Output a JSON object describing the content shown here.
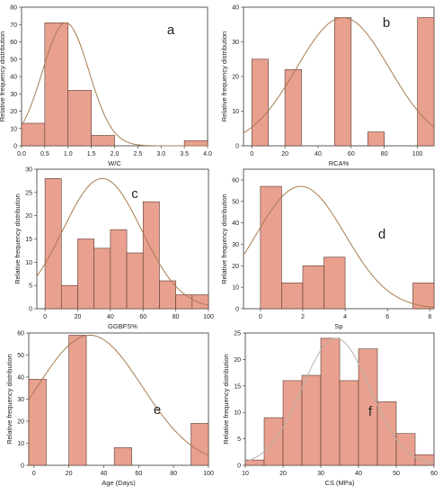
{
  "chart_data": [
    {
      "type": "bar",
      "panel": "a",
      "xlabel": "W/C",
      "ylabel": "Relative frequency distribution",
      "xlim": [
        0,
        4.0
      ],
      "ylim": [
        0,
        80
      ],
      "xticks": [
        "0.0",
        "0.5",
        "1.0",
        "1.5",
        "2.0",
        "2.5",
        "3.0",
        "3.5",
        "4.0"
      ],
      "yticks": [
        "0",
        "10",
        "20",
        "30",
        "40",
        "50",
        "60",
        "70",
        "80"
      ],
      "bins": [
        {
          "x0": 0.0,
          "x1": 0.5,
          "value": 13
        },
        {
          "x0": 0.5,
          "x1": 1.0,
          "value": 71
        },
        {
          "x0": 1.0,
          "x1": 1.5,
          "value": 32
        },
        {
          "x0": 1.5,
          "x1": 2.0,
          "value": 6
        },
        {
          "x0": 3.5,
          "x1": 4.0,
          "value": 3
        }
      ],
      "fit_curve": {
        "type": "normal",
        "mean": 0.95,
        "sd": 0.5,
        "peak": 71
      }
    },
    {
      "type": "bar",
      "panel": "b",
      "xlabel": "RCA%",
      "ylabel": "Relative frequency distribution",
      "xlim": [
        -5,
        110
      ],
      "ylim": [
        0,
        40
      ],
      "xticks": [
        "0",
        "20",
        "40",
        "60",
        "80",
        "100"
      ],
      "yticks": [
        "0",
        "10",
        "20",
        "30",
        "40"
      ],
      "bins": [
        {
          "x0": 0,
          "x1": 10,
          "value": 25
        },
        {
          "x0": 20,
          "x1": 30,
          "value": 22
        },
        {
          "x0": 50,
          "x1": 60,
          "value": 37
        },
        {
          "x0": 70,
          "x1": 80,
          "value": 4
        },
        {
          "x0": 100,
          "x1": 110,
          "value": 37
        }
      ],
      "fit_curve": {
        "type": "normal",
        "mean": 55,
        "sd": 28,
        "peak": 37
      }
    },
    {
      "type": "bar",
      "panel": "c",
      "xlabel": "GGBFS%",
      "ylabel": "Relative frequency distribution",
      "xlim": [
        -5,
        100
      ],
      "ylim": [
        0,
        30
      ],
      "xticks": [
        "0",
        "20",
        "40",
        "60",
        "80",
        "100"
      ],
      "yticks": [
        "0",
        "5",
        "10",
        "15",
        "20",
        "25",
        "30"
      ],
      "bins": [
        {
          "x0": 0,
          "x1": 10,
          "value": 28
        },
        {
          "x0": 10,
          "x1": 20,
          "value": 5
        },
        {
          "x0": 20,
          "x1": 30,
          "value": 15
        },
        {
          "x0": 30,
          "x1": 40,
          "value": 13
        },
        {
          "x0": 40,
          "x1": 50,
          "value": 17
        },
        {
          "x0": 50,
          "x1": 60,
          "value": 12
        },
        {
          "x0": 60,
          "x1": 70,
          "value": 23
        },
        {
          "x0": 70,
          "x1": 80,
          "value": 6
        },
        {
          "x0": 80,
          "x1": 90,
          "value": 3
        },
        {
          "x0": 90,
          "x1": 100,
          "value": 3
        }
      ],
      "fit_curve": {
        "type": "normal",
        "mean": 35,
        "sd": 24,
        "peak": 28
      }
    },
    {
      "type": "bar",
      "panel": "d",
      "xlabel": "Sp",
      "ylabel": "Relative frequency distribution",
      "xlim": [
        -0.8,
        8.2
      ],
      "ylim": [
        0,
        65
      ],
      "xticks": [
        "0",
        "2",
        "4",
        "6",
        "8"
      ],
      "yticks": [
        "0",
        "10",
        "20",
        "30",
        "40",
        "50",
        "60"
      ],
      "bins": [
        {
          "x0": 0.0,
          "x1": 1.0,
          "value": 57
        },
        {
          "x0": 1.0,
          "x1": 2.0,
          "value": 12
        },
        {
          "x0": 2.0,
          "x1": 3.0,
          "value": 20
        },
        {
          "x0": 3.0,
          "x1": 4.0,
          "value": 24
        },
        {
          "x0": 7.2,
          "x1": 8.2,
          "value": 12
        }
      ],
      "fit_curve": {
        "type": "normal",
        "mean": 1.9,
        "sd": 2.1,
        "peak": 57
      }
    },
    {
      "type": "bar",
      "panel": "e",
      "xlabel": "Age (Days)",
      "ylabel": "Relative frequency distribution",
      "xlim": [
        -3,
        100
      ],
      "ylim": [
        0,
        60
      ],
      "xticks": [
        "0",
        "20",
        "40",
        "60",
        "80",
        "100"
      ],
      "yticks": [
        "0",
        "10",
        "20",
        "30",
        "40",
        "50",
        "60"
      ],
      "bins": [
        {
          "x0": -3,
          "x1": 7,
          "value": 39
        },
        {
          "x0": 20,
          "x1": 30,
          "value": 59
        },
        {
          "x0": 46,
          "x1": 56,
          "value": 8
        },
        {
          "x0": 90,
          "x1": 100,
          "value": 19
        }
      ],
      "fit_curve": {
        "type": "normal",
        "mean": 32,
        "sd": 30,
        "peak": 59
      }
    },
    {
      "type": "bar",
      "panel": "f",
      "xlabel": "CS  (MPa)",
      "ylabel": "Relative frequency distribution",
      "xlim": [
        10,
        60
      ],
      "ylim": [
        0,
        25
      ],
      "xticks": [
        "10",
        "20",
        "30",
        "40",
        "50",
        "60"
      ],
      "yticks": [
        "0",
        "5",
        "10",
        "15",
        "20",
        "25"
      ],
      "bins": [
        {
          "x0": 10,
          "x1": 15,
          "value": 1
        },
        {
          "x0": 15,
          "x1": 20,
          "value": 9
        },
        {
          "x0": 20,
          "x1": 25,
          "value": 16
        },
        {
          "x0": 25,
          "x1": 30,
          "value": 17
        },
        {
          "x0": 30,
          "x1": 35,
          "value": 24
        },
        {
          "x0": 35,
          "x1": 40,
          "value": 16
        },
        {
          "x0": 40,
          "x1": 45,
          "value": 22
        },
        {
          "x0": 45,
          "x1": 50,
          "value": 12
        },
        {
          "x0": 50,
          "x1": 55,
          "value": 6
        },
        {
          "x0": 55,
          "x1": 60,
          "value": 2
        }
      ],
      "fit_curve": {
        "type": "normal",
        "mean": 34,
        "sd": 9,
        "peak": 24
      }
    }
  ],
  "style": {
    "bar_fill": "#e9a08e",
    "bar_stroke": "#5a3a33",
    "curve_color": "#a67c52",
    "curve_color_f": "#b7b1a6",
    "axis_color": "#333333"
  }
}
